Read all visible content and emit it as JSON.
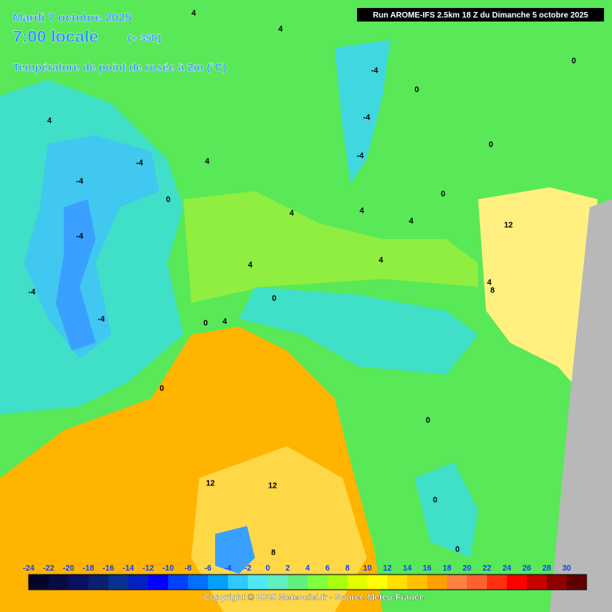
{
  "header": {
    "date": "Mardi 7 octobre 2025",
    "time": "7:00 locale",
    "lead": "(+ 35h)",
    "title": "Température de point de rosée à 2m (°C)",
    "run": "Run AROME-IFS 2.5km 18 Z du Dimanche 5 octobre 2025"
  },
  "map": {
    "contour_labels": [
      "4",
      "4",
      "-4",
      "0",
      "0",
      "4",
      "-4",
      "4",
      "-4",
      "-4",
      "0",
      "-4",
      "0",
      "0",
      "4",
      "4",
      "4",
      "12",
      "-4",
      "4",
      "4",
      "-4",
      "4",
      "8",
      "0",
      "-4",
      "0",
      "4",
      "0",
      "0",
      "12",
      "12",
      "0",
      "8",
      "0"
    ]
  },
  "legend": {
    "ticks": [
      -24,
      -22,
      -20,
      -18,
      -16,
      -14,
      -12,
      -10,
      -8,
      -6,
      -4,
      -2,
      0,
      2,
      4,
      6,
      8,
      10,
      12,
      14,
      16,
      18,
      20,
      22,
      24,
      26,
      28,
      30
    ],
    "colors": [
      "#05052a",
      "#0a0a45",
      "#0a1060",
      "#0a2070",
      "#0a3090",
      "#0020c0",
      "#0000ff",
      "#0040ff",
      "#0070ff",
      "#00a0ff",
      "#30c8ff",
      "#50e8f0",
      "#60f0c0",
      "#60f080",
      "#80ff40",
      "#a8ff10",
      "#e0ff00",
      "#ffff00",
      "#ffe000",
      "#ffc000",
      "#ffa000",
      "#ff8040",
      "#ff6030",
      "#ff3010",
      "#ff0000",
      "#c80000",
      "#900000",
      "#600000"
    ]
  },
  "footer": {
    "copyright": "Copyright © 2025 Meteociel.fr - Source Meteo-France"
  }
}
